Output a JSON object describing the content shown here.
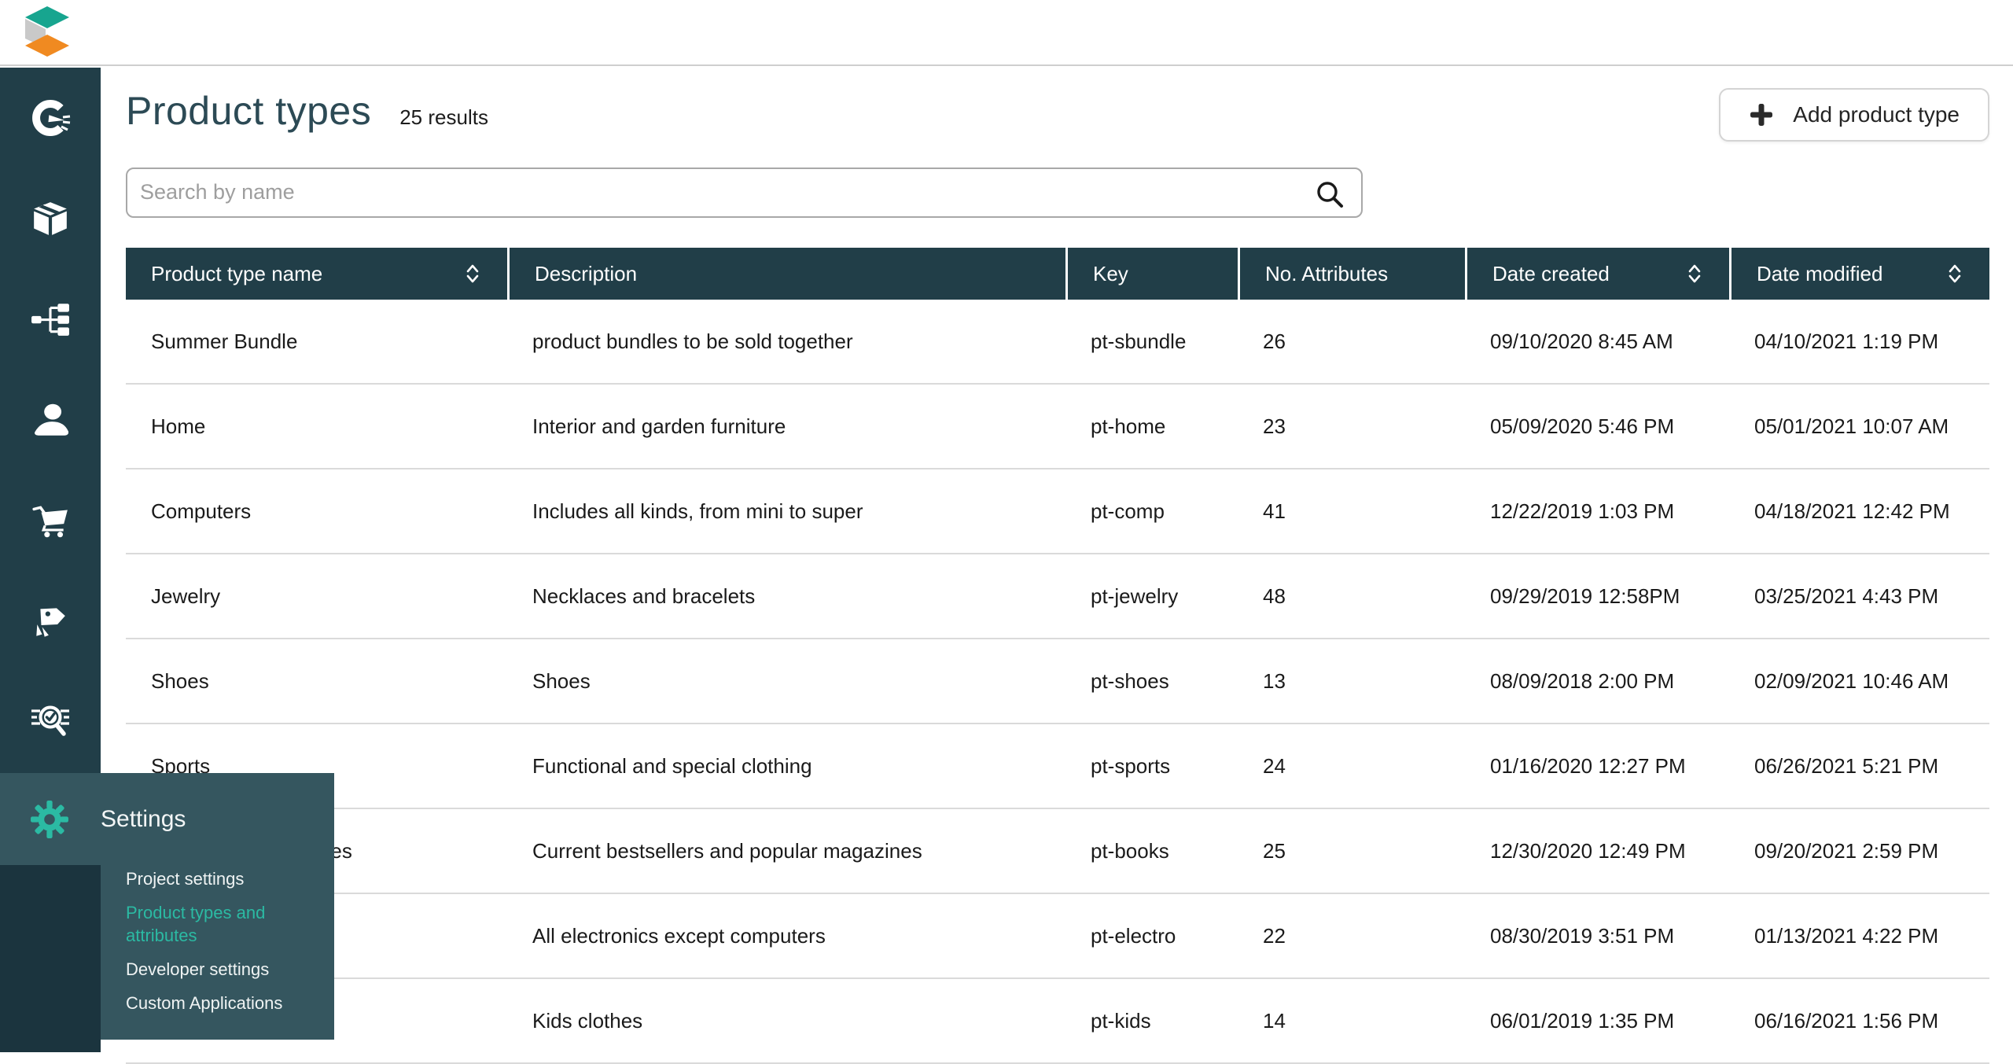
{
  "topbar": {
    "logo_icon": "commercetools-cube-logo"
  },
  "sidebar": {
    "items": [
      {
        "icon": "dashboard-gauge-icon",
        "name": "dashboard"
      },
      {
        "icon": "products-box-icon",
        "name": "products"
      },
      {
        "icon": "categories-tree-icon",
        "name": "categories"
      },
      {
        "icon": "customers-person-icon",
        "name": "customers"
      },
      {
        "icon": "orders-cart-icon",
        "name": "orders"
      },
      {
        "icon": "discounts-tags-icon",
        "name": "discounts"
      },
      {
        "icon": "audit-search-check-icon",
        "name": "audit"
      }
    ]
  },
  "settings_flyout": {
    "title": "Settings",
    "gear_icon": "gear-icon",
    "items": [
      {
        "label": "Project settings",
        "active": false
      },
      {
        "label": "Product types and attributes",
        "active": true
      },
      {
        "label": "Developer settings",
        "active": false
      },
      {
        "label": "Custom Applications",
        "active": false
      }
    ]
  },
  "header": {
    "title": "Product types",
    "results_count": "25 results",
    "add_button_label": "Add product type",
    "add_button_icon": "plus-icon"
  },
  "search": {
    "placeholder": "Search by name",
    "icon": "search-icon"
  },
  "table": {
    "columns": [
      {
        "label": "Product type name",
        "sortable": true
      },
      {
        "label": "Description",
        "sortable": false
      },
      {
        "label": "Key",
        "sortable": false
      },
      {
        "label": "No. Attributes",
        "sortable": false
      },
      {
        "label": "Date created",
        "sortable": true
      },
      {
        "label": "Date modified",
        "sortable": true
      }
    ],
    "rows": [
      [
        "Summer Bundle",
        "product bundles to be sold together",
        "pt-sbundle",
        "26",
        "09/10/2020 8:45 AM",
        "04/10/2021 1:19 PM"
      ],
      [
        "Home",
        "Interior and garden furniture",
        "pt-home",
        "23",
        "05/09/2020 5:46 PM",
        "05/01/2021 10:07 AM"
      ],
      [
        "Computers",
        "Includes all kinds, from mini to super",
        "pt-comp",
        "41",
        "12/22/2019 1:03 PM",
        "04/18/2021 12:42 PM"
      ],
      [
        "Jewelry",
        "Necklaces and bracelets",
        "pt-jewelry",
        "48",
        "09/29/2019 12:58PM",
        "03/25/2021 4:43 PM"
      ],
      [
        "Shoes",
        "Shoes",
        "pt-shoes",
        "13",
        "08/09/2018 2:00 PM",
        "02/09/2021 10:46 AM"
      ],
      [
        "Sports",
        "Functional and special clothing",
        "pt-sports",
        "24",
        "01/16/2020 12:27 PM",
        "06/26/2021 5:21 PM"
      ],
      [
        "Books and magazines",
        "Current bestsellers and popular magazines",
        "pt-books",
        "25",
        "12/30/2020 12:49 PM",
        "09/20/2021 2:59 PM"
      ],
      [
        "",
        "All electronics except computers",
        "pt-electro",
        "22",
        "08/30/2019 3:51 PM",
        "01/13/2021 4:22 PM"
      ],
      [
        "",
        "Kids clothes",
        "pt-kids",
        "14",
        "06/01/2019 1:35 PM",
        "06/16/2021 1:56 PM"
      ]
    ]
  },
  "colors": {
    "sidebar_bg": "#213e48",
    "table_header_bg": "#213e48",
    "table_header_text": "#ffffff",
    "flyout_bg": "#35565f",
    "flyout_lower_strip": "#1b343e",
    "accent_teal": "#2bbaa3",
    "row_border": "#dadada",
    "logo_teal": "#17a58f",
    "logo_gray": "#c9c9c9",
    "logo_orange": "#f08a21",
    "title_text": "#2c4a55",
    "body_text": "#1a1a1a"
  }
}
